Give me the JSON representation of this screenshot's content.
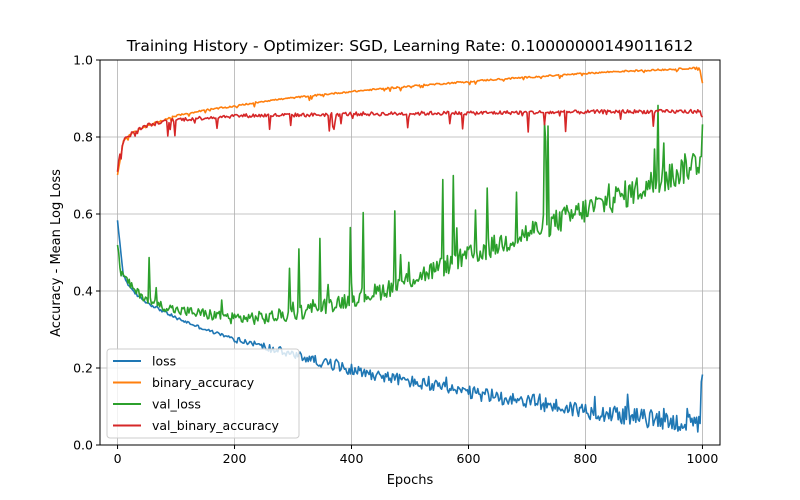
{
  "chart_data": {
    "type": "line",
    "title": "Training History - Optimizer: SGD, Learning Rate: 0.10000000149011612",
    "xlabel": "Epochs",
    "ylabel": "Accuracy - Mean Log Loss",
    "xlim": [
      -30,
      1030
    ],
    "ylim": [
      0.0,
      1.0
    ],
    "xticks": [
      0,
      200,
      400,
      600,
      800,
      1000
    ],
    "yticks": [
      0.0,
      0.2,
      0.4,
      0.6,
      0.8,
      1.0
    ],
    "xtick_labels": [
      "0",
      "200",
      "400",
      "600",
      "800",
      "1000"
    ],
    "ytick_labels": [
      "0.0",
      "0.2",
      "0.4",
      "0.6",
      "0.8",
      "1.0"
    ],
    "grid": true,
    "legend_position": "lower-left",
    "series": [
      {
        "name": "loss",
        "color": "#1f77b4",
        "x": [
          0,
          10,
          25,
          50,
          100,
          150,
          200,
          250,
          300,
          350,
          400,
          450,
          500,
          550,
          600,
          650,
          700,
          750,
          800,
          850,
          900,
          950,
          995,
          1000
        ],
        "values": [
          0.58,
          0.44,
          0.4,
          0.37,
          0.33,
          0.3,
          0.275,
          0.255,
          0.235,
          0.215,
          0.195,
          0.18,
          0.165,
          0.15,
          0.135,
          0.125,
          0.115,
          0.1,
          0.09,
          0.08,
          0.07,
          0.06,
          0.05,
          0.2
        ]
      },
      {
        "name": "binary_accuracy",
        "color": "#ff7f0e",
        "x": [
          0,
          10,
          25,
          50,
          100,
          150,
          200,
          250,
          300,
          350,
          400,
          450,
          500,
          550,
          600,
          650,
          700,
          750,
          800,
          850,
          900,
          950,
          995,
          1000
        ],
        "values": [
          0.7,
          0.79,
          0.81,
          0.83,
          0.855,
          0.87,
          0.88,
          0.893,
          0.902,
          0.91,
          0.918,
          0.925,
          0.932,
          0.938,
          0.944,
          0.95,
          0.955,
          0.96,
          0.965,
          0.97,
          0.973,
          0.976,
          0.98,
          0.94
        ]
      },
      {
        "name": "val_loss",
        "color": "#2ca02c",
        "x": [
          0,
          5,
          15,
          30,
          60,
          100,
          150,
          200,
          250,
          300,
          350,
          400,
          450,
          500,
          550,
          600,
          650,
          700,
          750,
          800,
          850,
          900,
          950,
          995,
          1000
        ],
        "values": [
          0.52,
          0.45,
          0.43,
          0.4,
          0.37,
          0.35,
          0.34,
          0.33,
          0.33,
          0.34,
          0.36,
          0.38,
          0.4,
          0.43,
          0.46,
          0.49,
          0.52,
          0.55,
          0.58,
          0.61,
          0.64,
          0.67,
          0.7,
          0.74,
          0.76
        ]
      },
      {
        "name": "val_binary_accuracy",
        "color": "#d62728",
        "x": [
          0,
          10,
          25,
          50,
          100,
          150,
          200,
          250,
          300,
          350,
          400,
          450,
          500,
          550,
          600,
          650,
          700,
          750,
          800,
          850,
          900,
          950,
          995,
          1000
        ],
        "values": [
          0.73,
          0.79,
          0.81,
          0.83,
          0.845,
          0.85,
          0.855,
          0.856,
          0.857,
          0.858,
          0.86,
          0.86,
          0.861,
          0.862,
          0.862,
          0.863,
          0.864,
          0.864,
          0.865,
          0.866,
          0.866,
          0.866,
          0.867,
          0.85
        ]
      }
    ]
  }
}
